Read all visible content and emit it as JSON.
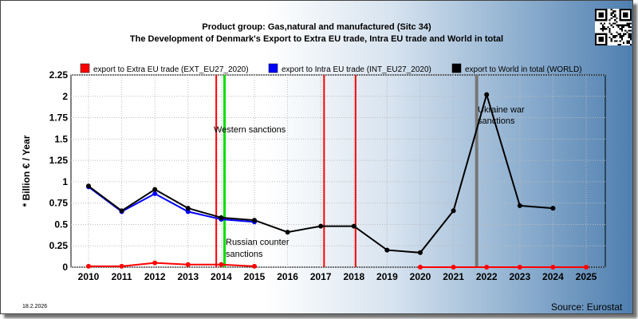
{
  "title_line1": "Product group: Gas,natural and manufactured (Sitc 34)",
  "title_line2": "The Development of Denmark's Export to Extra EU trade, Intra EU trade and World in total",
  "date": "18.2.2026",
  "source": "Source: Eurostat",
  "colors": {
    "extra_eu": "#ff0000",
    "intra_eu": "#0000ff",
    "world": "#000000",
    "sanction_red": "#ff0000",
    "sanction_green": "#00dd00",
    "sanction_gray": "#777777"
  },
  "chart_data": {
    "type": "line",
    "ylabel": "* Billion € / Year",
    "ylim": [
      0,
      2.25
    ],
    "yticks": [
      "0",
      "0.25",
      "0.5",
      "0.75",
      "1",
      "1.25",
      "1.5",
      "1.75",
      "2",
      "2.25"
    ],
    "x": [
      "2010",
      "2011",
      "2012",
      "2013",
      "2014",
      "2015",
      "2016",
      "2017",
      "2018",
      "2019",
      "2020",
      "2021",
      "2022",
      "2023",
      "2024",
      "2025"
    ],
    "grid": true,
    "legend_position": "top",
    "series": [
      {
        "name": "export to Extra EU trade (EXT_EU27_2020)",
        "color": "#ff0000",
        "values": [
          0.01,
          0.01,
          0.05,
          0.03,
          0.03,
          0.01,
          null,
          null,
          null,
          null,
          0.0,
          0.0,
          0.0,
          0.0,
          0.0,
          0.0
        ]
      },
      {
        "name": "export to Intra EU trade (INT_EU27_2020)",
        "color": "#0000ff",
        "values": [
          0.94,
          0.65,
          0.86,
          0.65,
          0.56,
          0.53,
          null,
          null,
          null,
          null,
          null,
          null,
          null,
          null,
          null,
          null
        ]
      },
      {
        "name": "export to World in total (WORLD)",
        "color": "#000000",
        "values": [
          0.95,
          0.66,
          0.91,
          0.69,
          0.58,
          0.55,
          0.41,
          0.48,
          0.48,
          0.2,
          0.17,
          0.66,
          2.02,
          0.72,
          0.69,
          null
        ]
      }
    ],
    "annotations": [
      {
        "text": "Western sanctions",
        "year": 2014
      },
      {
        "text": "Russian counter",
        "year": 2014
      },
      {
        "text": "sanctions",
        "year": 2014
      },
      {
        "text": "Ukraine war",
        "year": 2022
      },
      {
        "text": "sanctions",
        "year": 2022
      }
    ]
  }
}
